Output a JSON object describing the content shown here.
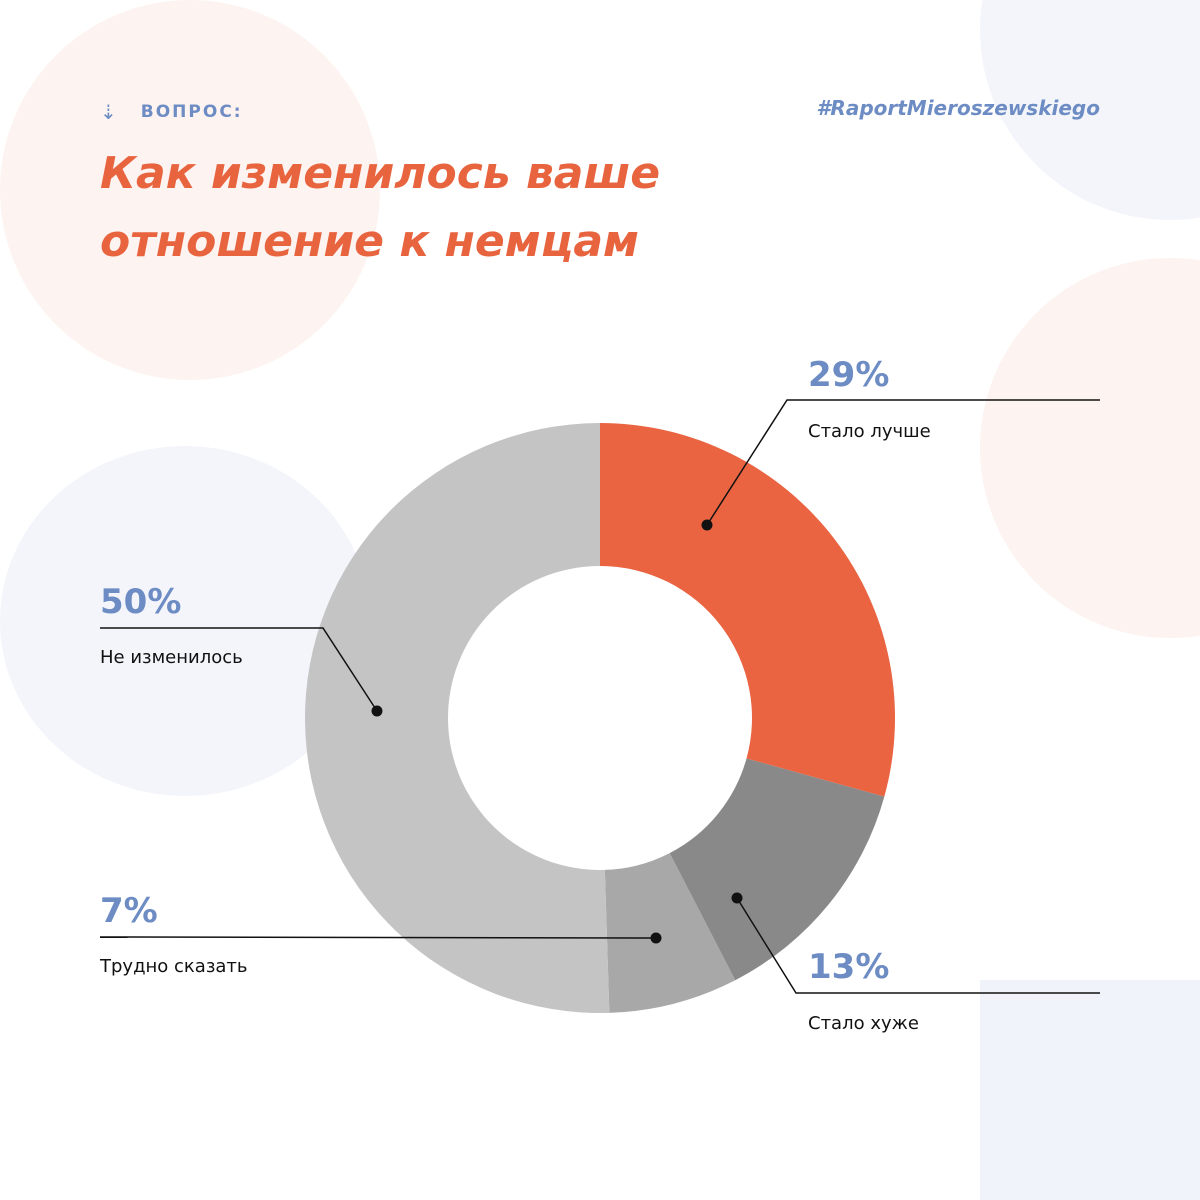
{
  "header": {
    "question_label": "ВОПРОС:",
    "arrow_icon": "arrow-down-icon",
    "hashtag": "#RaportMieroszewskiego"
  },
  "colors": {
    "accent_orange": "#e8643f",
    "accent_blue": "#6d8cc4",
    "slice_better": "#ea6442",
    "slice_worse": "#898989",
    "slice_hard": "#a8a8a8",
    "slice_unchanged": "#c4c4c4"
  },
  "chart_data": {
    "type": "pie",
    "title": "Как изменилось ваше отношение к немцам",
    "donut": true,
    "slices": [
      {
        "label": "Стало лучше",
        "value": 29,
        "value_label": "29%",
        "color": "#ea6442"
      },
      {
        "label": "Стало хуже",
        "value": 13,
        "value_label": "13%",
        "color": "#898989"
      },
      {
        "label": "Трудно сказать",
        "value": 7,
        "value_label": "7%",
        "color": "#a8a8a8"
      },
      {
        "label": "Не изменилось",
        "value": 50,
        "value_label": "50%",
        "color": "#c4c4c4"
      }
    ]
  }
}
